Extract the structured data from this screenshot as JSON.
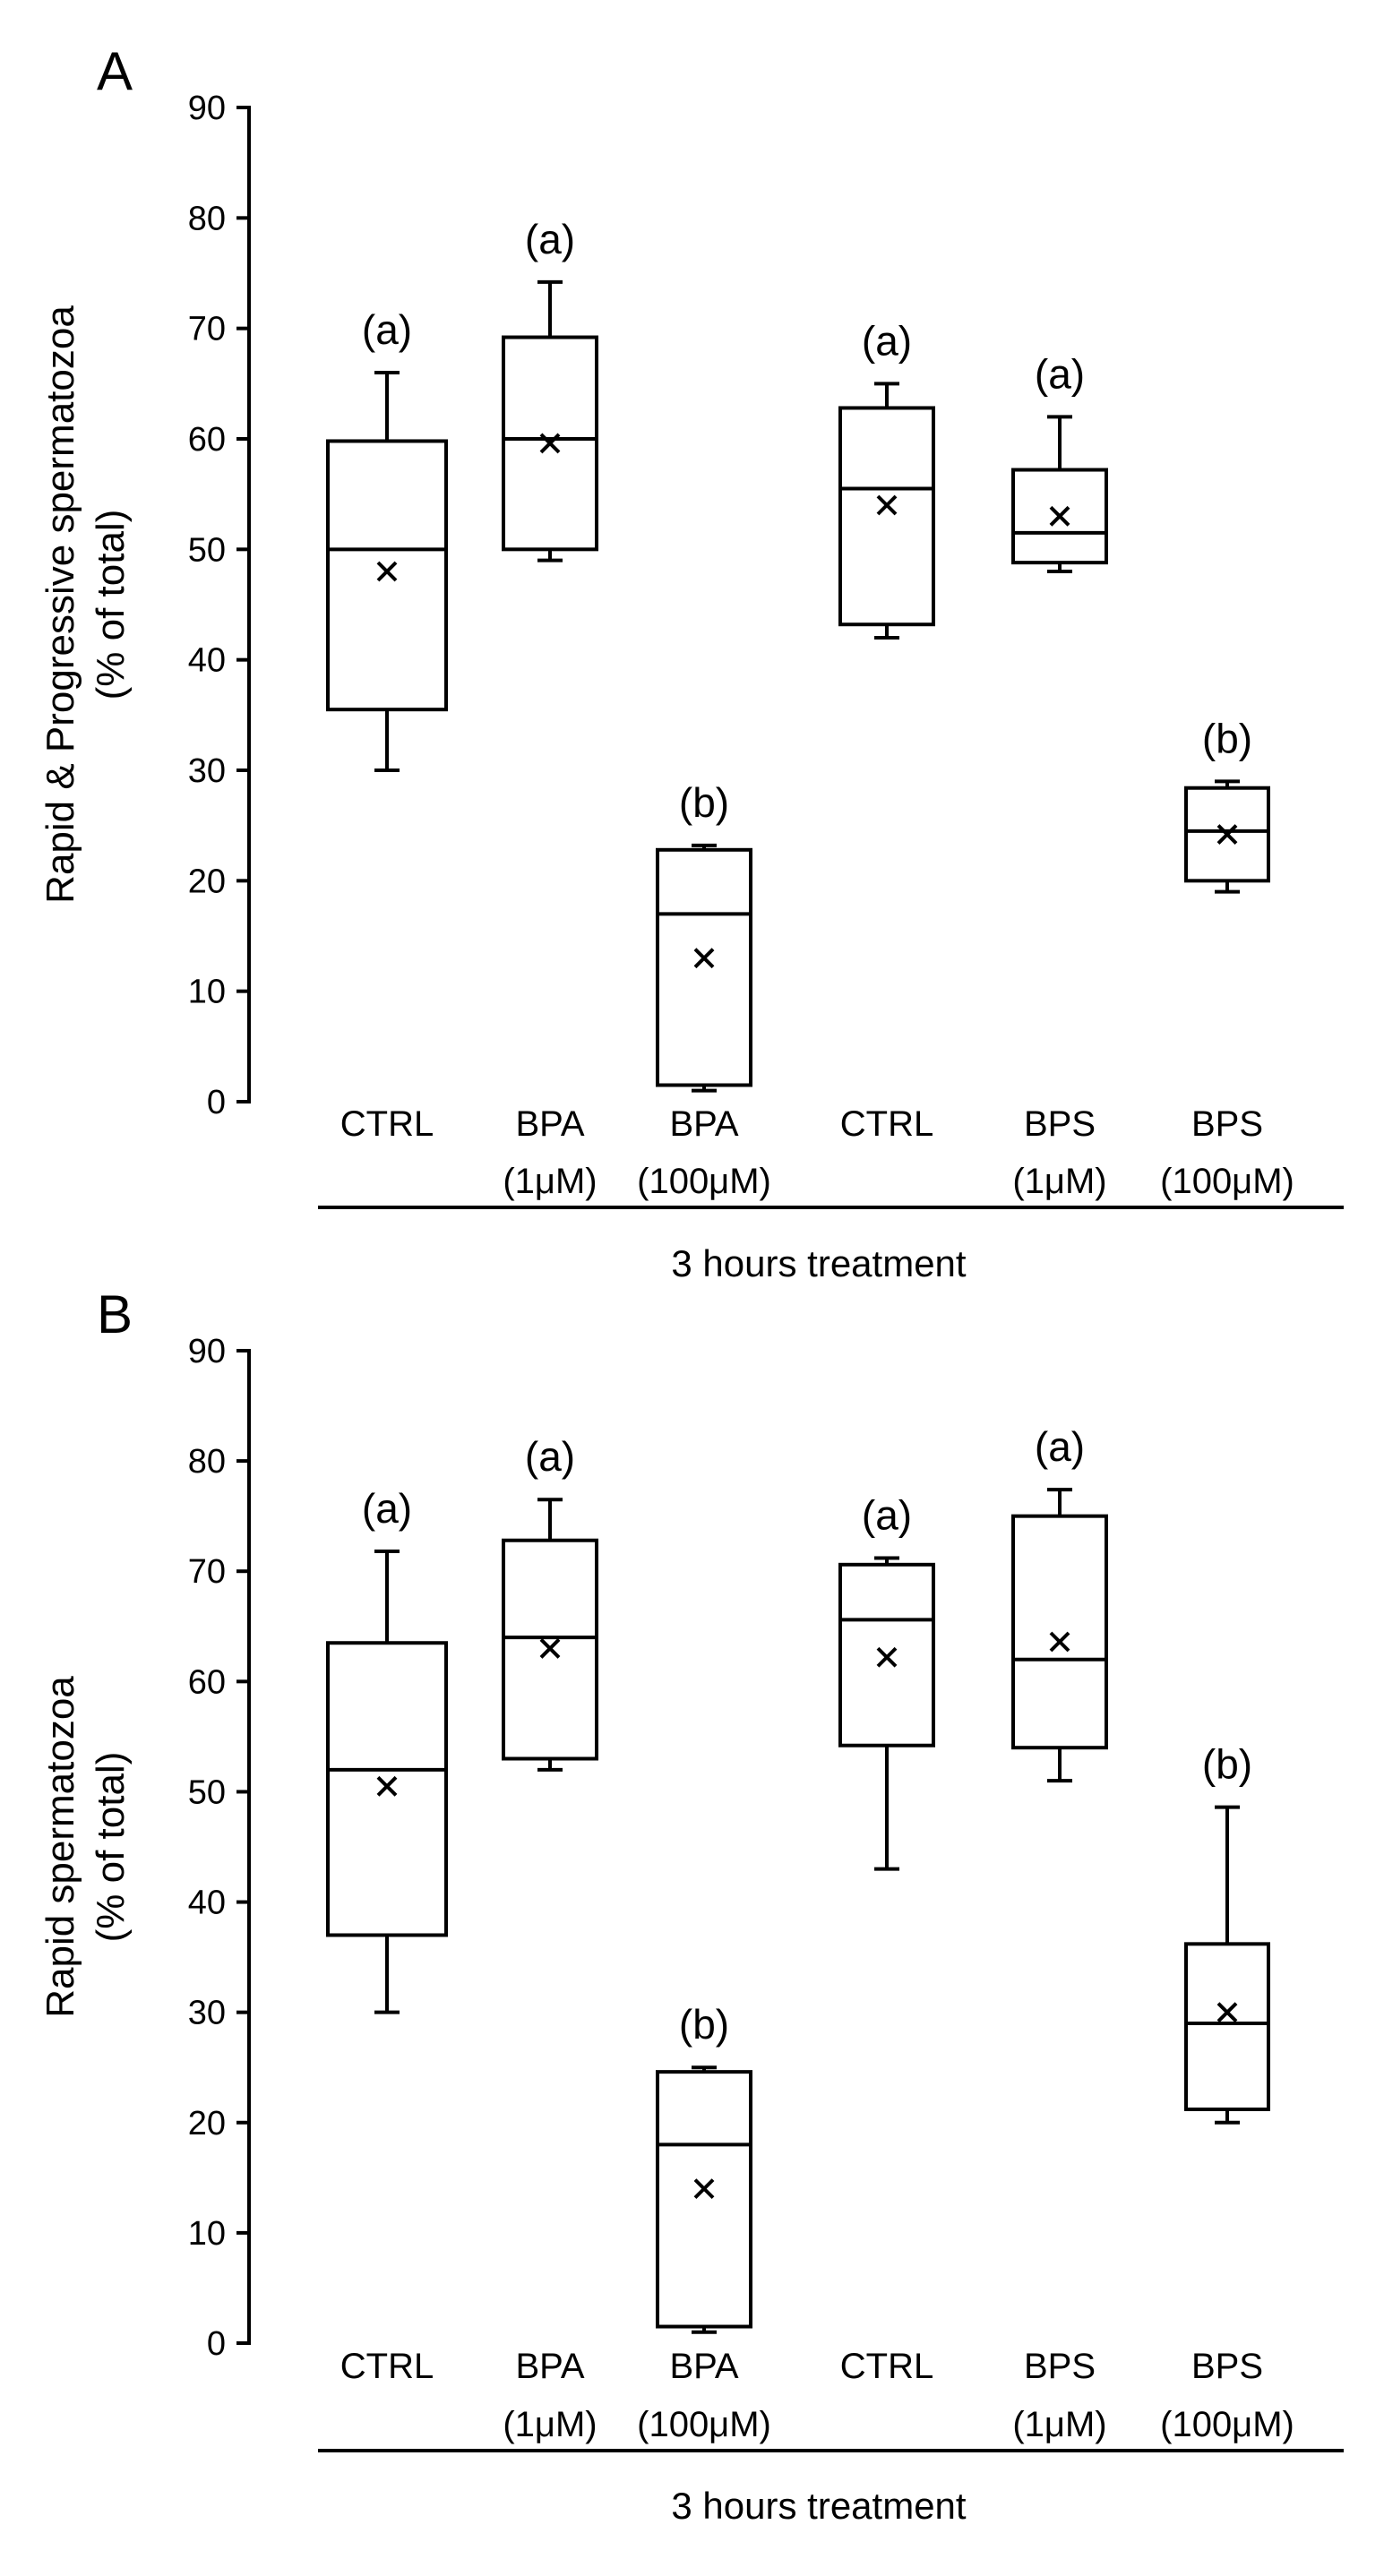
{
  "chart_data": [
    {
      "type": "box",
      "panel": "A",
      "ylabel": [
        "Rapid & Progressive spermatozoa",
        "(% of total)"
      ],
      "ylim": [
        0,
        90
      ],
      "yticks": [
        0,
        10,
        20,
        30,
        40,
        50,
        60,
        70,
        80,
        90
      ],
      "group_label": "3 hours treatment",
      "boxes": [
        {
          "label": [
            "CTRL"
          ],
          "min": 30,
          "q1": 35.5,
          "median": 50,
          "q3": 59.8,
          "max": 66,
          "mean": 48,
          "sig": "(a)"
        },
        {
          "label": [
            "BPA",
            "(1μM)"
          ],
          "min": 49,
          "q1": 50,
          "median": 60,
          "q3": 69.2,
          "max": 74.2,
          "mean": 59.6,
          "sig": "(a)"
        },
        {
          "label": [
            "BPA",
            "(100μM)"
          ],
          "min": 1,
          "q1": 1.5,
          "median": 17,
          "q3": 22.8,
          "max": 23.2,
          "mean": 13,
          "sig": "(b)"
        },
        {
          "label": [
            "CTRL"
          ],
          "min": 42,
          "q1": 43.2,
          "median": 55.5,
          "q3": 62.8,
          "max": 65,
          "mean": 54,
          "sig": "(a)"
        },
        {
          "label": [
            "BPS",
            "(1μM)"
          ],
          "min": 48,
          "q1": 48.8,
          "median": 51.5,
          "q3": 57.2,
          "max": 62,
          "mean": 53,
          "sig": "(a)"
        },
        {
          "label": [
            "BPS",
            "(100μM)"
          ],
          "min": 19,
          "q1": 20,
          "median": 24.5,
          "q3": 28.4,
          "max": 29,
          "mean": 24.2,
          "sig": "(b)"
        }
      ]
    },
    {
      "type": "box",
      "panel": "B",
      "ylabel": [
        "Rapid spermatozoa",
        "(% of total)"
      ],
      "ylim": [
        0,
        90
      ],
      "yticks": [
        0,
        10,
        20,
        30,
        40,
        50,
        60,
        70,
        80,
        90
      ],
      "group_label": "3 hours treatment",
      "boxes": [
        {
          "label": [
            "CTRL"
          ],
          "min": 30,
          "q1": 37,
          "median": 52,
          "q3": 63.5,
          "max": 71.8,
          "mean": 50.5,
          "sig": "(a)"
        },
        {
          "label": [
            "BPA",
            "(1μM)"
          ],
          "min": 52,
          "q1": 53,
          "median": 64,
          "q3": 72.8,
          "max": 76.5,
          "mean": 63,
          "sig": "(a)"
        },
        {
          "label": [
            "BPA",
            "(100μM)"
          ],
          "min": 1,
          "q1": 1.5,
          "median": 18,
          "q3": 24.6,
          "max": 25,
          "mean": 14,
          "sig": "(b)"
        },
        {
          "label": [
            "CTRL"
          ],
          "min": 43,
          "q1": 54.2,
          "median": 65.6,
          "q3": 70.6,
          "max": 71.2,
          "mean": 62.2,
          "sig": "(a)"
        },
        {
          "label": [
            "BPS",
            "(1μM)"
          ],
          "min": 51,
          "q1": 54,
          "median": 62,
          "q3": 75,
          "max": 77.4,
          "mean": 63.6,
          "sig": "(a)"
        },
        {
          "label": [
            "BPS",
            "(100μM)"
          ],
          "min": 20,
          "q1": 21.2,
          "median": 29,
          "q3": 36.2,
          "max": 48.6,
          "mean": 30,
          "sig": "(b)"
        }
      ]
    }
  ]
}
